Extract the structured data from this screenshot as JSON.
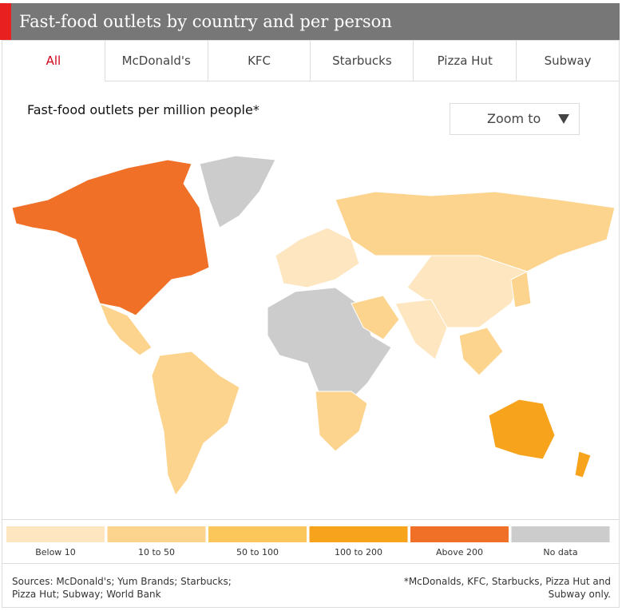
{
  "header": {
    "title": "Fast-food outlets by country and per person"
  },
  "tabs": [
    "All",
    "McDonald's",
    "KFC",
    "Starbucks",
    "Pizza Hut",
    "Subway"
  ],
  "map": {
    "title": "Fast-food outlets per million people*",
    "zoom": "Zoom to"
  },
  "legend": [
    {
      "label": "Below 10",
      "color": "#fde6c0"
    },
    {
      "label": "10 to 50",
      "color": "#fcd48e"
    },
    {
      "label": "50 to 100",
      "color": "#fbc75a"
    },
    {
      "label": "100 to 200",
      "color": "#f8a31c"
    },
    {
      "label": "Above 200",
      "color": "#f07028"
    },
    {
      "label": "No data",
      "color": "#cccccc"
    }
  ],
  "footer": {
    "sources": [
      "Sources: McDonald's; Yum Brands; Starbucks;",
      "Pizza Hut; Subway; World Bank"
    ],
    "note": [
      "*McDonalds, KFC, Starbucks, Pizza Hut and",
      "Subway only."
    ]
  }
}
